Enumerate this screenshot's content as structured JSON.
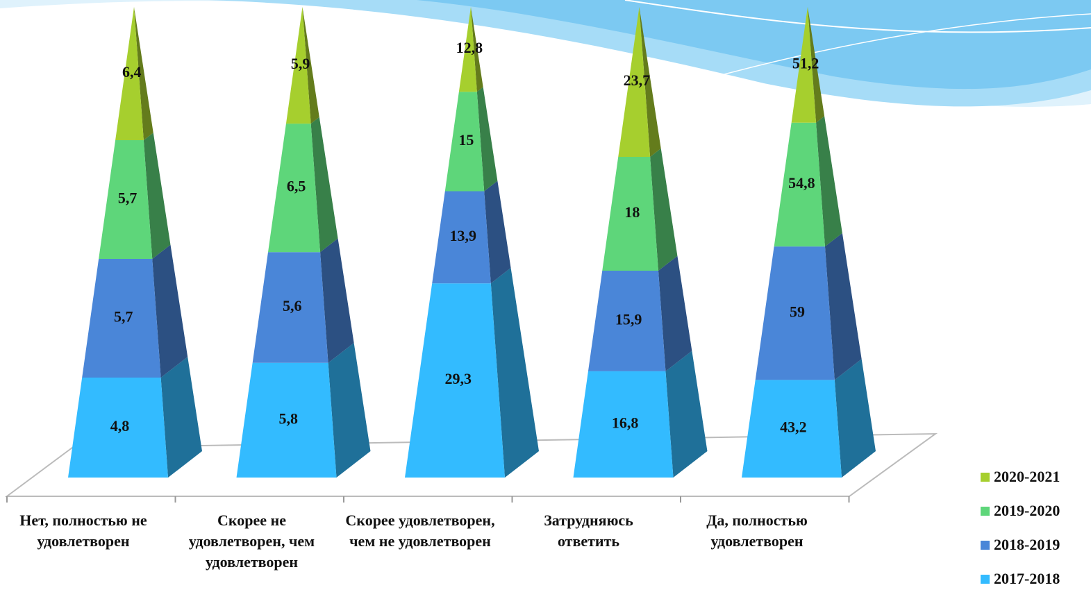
{
  "chart_data": {
    "type": "pyramid",
    "categories": [
      "Нет, полностью не удовлетворен",
      "Скорее не удовлетворен, чем удовлетворен",
      "Скорее удовлетворен, чем не удовлетворен",
      "Затрудняюсь ответить",
      "Да, полностью удовлетворен"
    ],
    "series": [
      {
        "name": "2017-2018",
        "color": "#33bbff",
        "values": [
          4.8,
          5.8,
          29.3,
          16.8,
          43.2
        ],
        "value_labels": [
          "4,8",
          "5,8",
          "29,3",
          "16,8",
          "43,2"
        ]
      },
      {
        "name": "2018-2019",
        "color": "#4a86d8",
        "values": [
          5.7,
          5.6,
          13.9,
          15.9,
          59
        ],
        "value_labels": [
          "5,7",
          "5,6",
          "13,9",
          "15,9",
          "59"
        ]
      },
      {
        "name": "2019-2020",
        "color": "#5ed67a",
        "values": [
          5.7,
          6.5,
          15,
          18,
          54.8
        ],
        "value_labels": [
          "5,7",
          "6,5",
          "15",
          "18",
          "54,8"
        ]
      },
      {
        "name": "2020-2021",
        "color": "#a6cf2e",
        "values": [
          6.4,
          5.9,
          12.8,
          23.7,
          51.2
        ],
        "value_labels": [
          "6,4",
          "5,9",
          "12,8",
          "23,7",
          "51,2"
        ]
      }
    ],
    "stacking": "percent",
    "legend": "right"
  }
}
